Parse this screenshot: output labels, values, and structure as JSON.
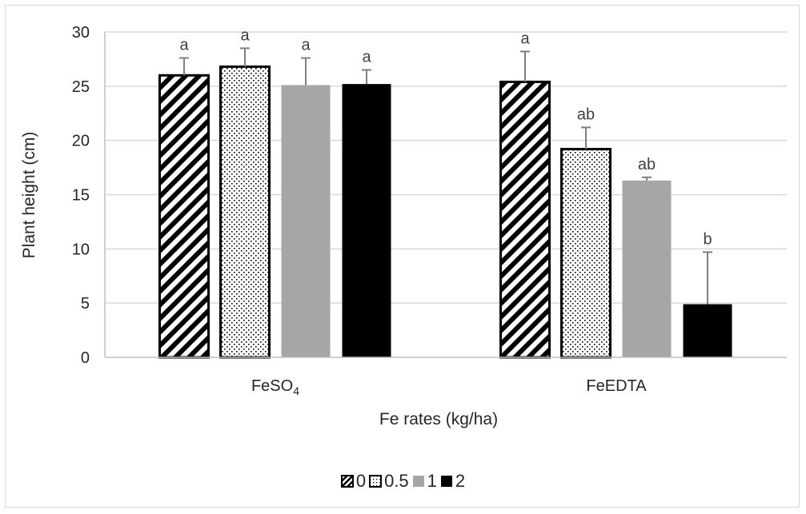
{
  "chart_data": {
    "type": "bar",
    "title": "",
    "xlabel": "Fe rates (kg/ha)",
    "ylabel": "Plant height (cm)",
    "ylim": [
      0,
      30
    ],
    "yticks": [
      0,
      5,
      10,
      15,
      20,
      25,
      30
    ],
    "grid": "horizontal",
    "legend_position": "bottom",
    "categories": [
      {
        "base": "FeSO",
        "subscript": "4"
      },
      {
        "base": "FeEDTA",
        "subscript": ""
      }
    ],
    "series": [
      {
        "name": "0",
        "pattern": "diagonal-stripes",
        "color": "#000000",
        "values": [
          26.0,
          25.4
        ],
        "errors": [
          1.6,
          2.8
        ],
        "labels": [
          "a",
          "a"
        ]
      },
      {
        "name": "0.5",
        "pattern": "dots",
        "color": "#000000",
        "values": [
          26.8,
          19.2
        ],
        "errors": [
          1.7,
          2.0
        ],
        "labels": [
          "a",
          "ab"
        ]
      },
      {
        "name": "1",
        "pattern": "solid",
        "color": "#a6a6a6",
        "values": [
          25.1,
          16.3
        ],
        "errors": [
          2.5,
          0.3
        ],
        "labels": [
          "a",
          "ab"
        ]
      },
      {
        "name": "2",
        "pattern": "solid",
        "color": "#000000",
        "values": [
          25.2,
          4.9
        ],
        "errors": [
          1.3,
          4.8
        ],
        "labels": [
          "a",
          "b"
        ]
      }
    ]
  }
}
